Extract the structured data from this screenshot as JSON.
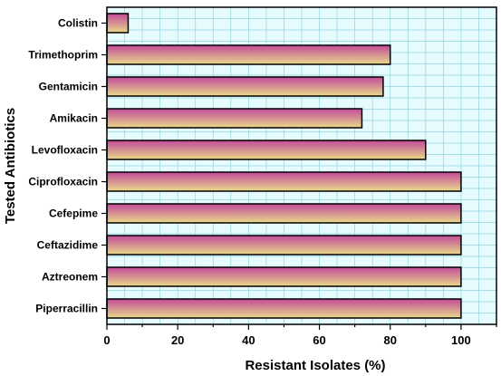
{
  "chart_data": {
    "type": "bar",
    "orientation": "horizontal",
    "categories": [
      "Colistin",
      "Trimethoprim",
      "Gentamicin",
      "Amikacin",
      "Levofloxacin",
      "Ciprofloxacin",
      "Cefepime",
      "Ceftazidime",
      "Aztreonem",
      "Piperracillin"
    ],
    "values": [
      6,
      80,
      78,
      72,
      90,
      100,
      100,
      100,
      100,
      100
    ],
    "xlabel": "Resistant  Isolates (%)",
    "ylabel": "Tested Antibiotics",
    "xlim": [
      0,
      110
    ],
    "xticks": [
      0,
      20,
      40,
      60,
      80,
      100
    ],
    "grid": true,
    "colors": {
      "plot_background": "#e6fbfd",
      "grid": "#8fd3dc",
      "bar_top": "#c24a9a",
      "bar_bottom": "#e8d98a",
      "bar_outline": "#000000"
    }
  }
}
